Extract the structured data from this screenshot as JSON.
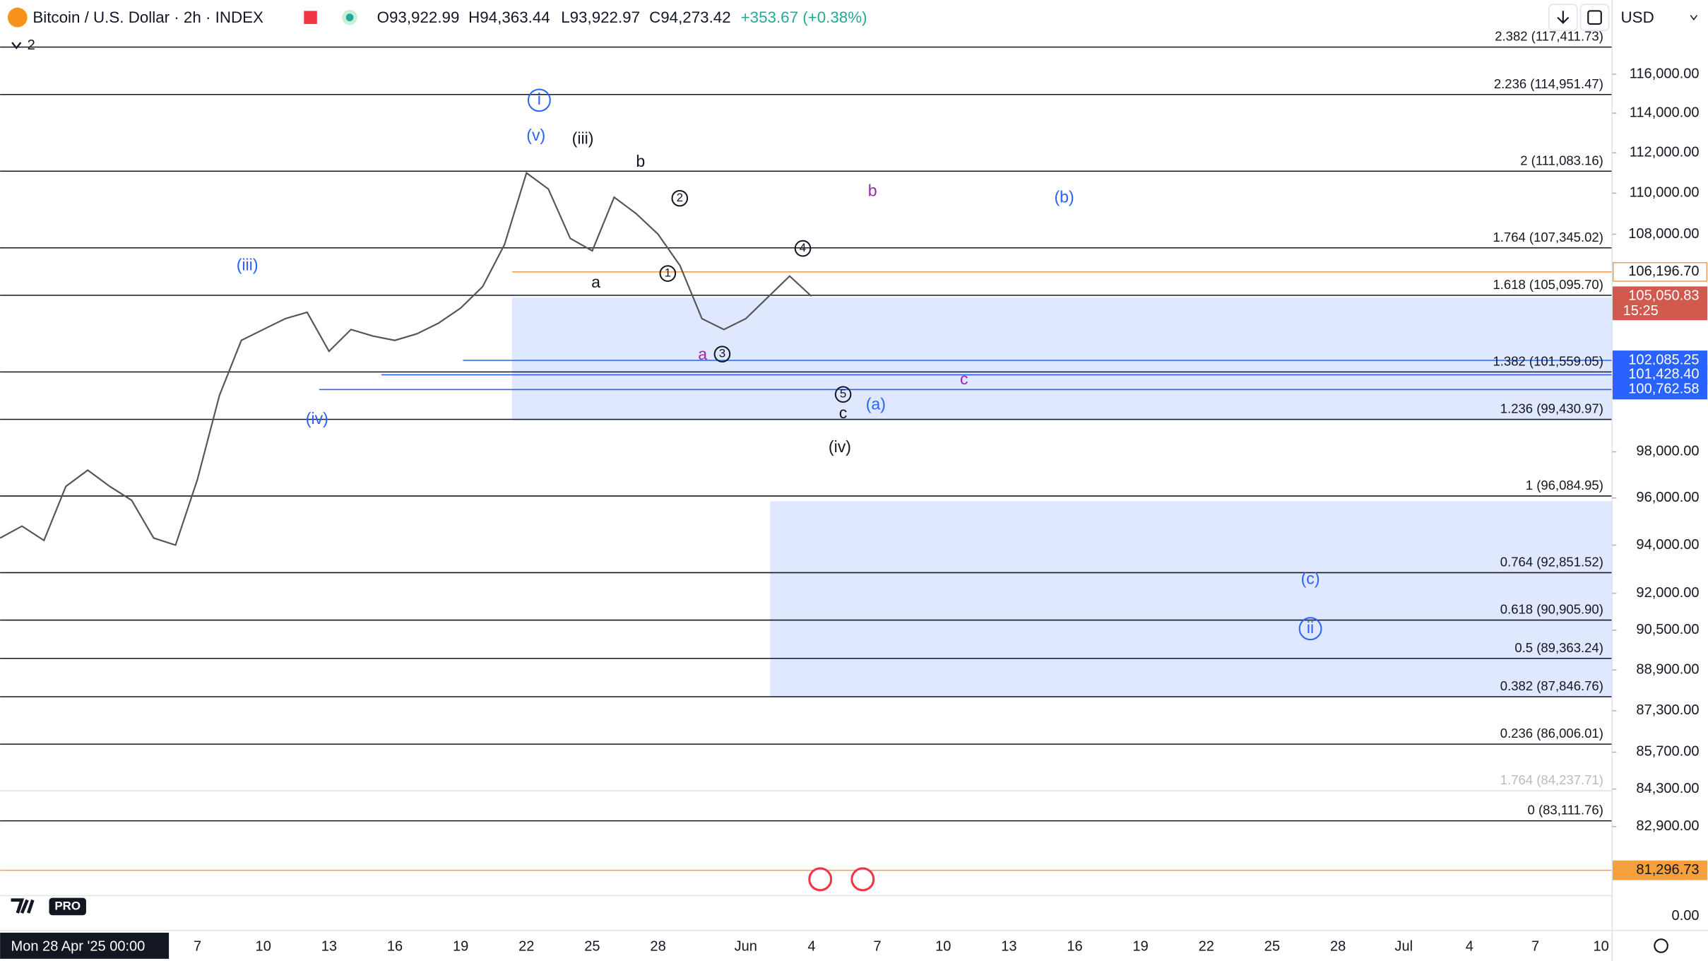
{
  "header": {
    "symbol": "Bitcoin / U.S. Dollar · 2h · INDEX",
    "open": "O93,922.99",
    "high": "H94,363.44",
    "low": "L93,922.97",
    "close": "C94,273.42",
    "change": "+353.67 (+0.38%)",
    "indicator_count": "2",
    "currency": "USD",
    "logo": "PRO"
  },
  "chart_data": {
    "type": "line",
    "log_scale": true,
    "x": [
      "2025-04-28T00:00",
      "2025-04-29T00:00",
      "2025-04-30T00:00",
      "2025-05-01T00:00",
      "2025-05-02T00:00",
      "2025-05-03T00:00",
      "2025-05-04T00:00",
      "2025-05-05T00:00",
      "2025-05-06T00:00",
      "2025-05-07T00:00",
      "2025-05-08T00:00",
      "2025-05-09T00:00",
      "2025-05-10T00:00",
      "2025-05-11T00:00",
      "2025-05-12T00:00",
      "2025-05-13T00:00",
      "2025-05-14T00:00",
      "2025-05-15T00:00",
      "2025-05-16T00:00",
      "2025-05-17T00:00",
      "2025-05-18T00:00",
      "2025-05-19T00:00",
      "2025-05-20T00:00",
      "2025-05-21T00:00",
      "2025-05-22T00:00",
      "2025-05-23T00:00",
      "2025-05-24T00:00",
      "2025-05-25T00:00",
      "2025-05-26T00:00",
      "2025-05-27T00:00",
      "2025-05-28T00:00",
      "2025-05-29T00:00",
      "2025-05-30T00:00",
      "2025-05-31T00:00",
      "2025-06-01T00:00",
      "2025-06-02T00:00",
      "2025-06-03T00:00",
      "2025-06-04T00:00"
    ],
    "series": [
      {
        "name": "Bitcoin",
        "color": "#555555",
        "values": [
          94300,
          94800,
          94200,
          96500,
          97200,
          96500,
          95900,
          94300,
          94000,
          96800,
          100500,
          103000,
          103500,
          104000,
          104300,
          102500,
          103500,
          103200,
          103000,
          103300,
          103800,
          104500,
          105500,
          107500,
          111000,
          110200,
          107800,
          107200,
          109800,
          109000,
          108000,
          106500,
          104000,
          103500,
          104000,
          105000,
          106000,
          105050
        ]
      }
    ],
    "xlim": [
      "2025-04-28T00:00",
      "2025-07-10T12:00"
    ],
    "xticks": [
      {
        "value": "2025-04-28T00:00",
        "label": "Mon 28 Apr '25   00:00"
      },
      {
        "value": "2025-05-07T00:00",
        "label": "7"
      },
      {
        "value": "2025-05-10T00:00",
        "label": "10"
      },
      {
        "value": "2025-05-13T00:00",
        "label": "13"
      },
      {
        "value": "2025-05-16T00:00",
        "label": "16"
      },
      {
        "value": "2025-05-19T00:00",
        "label": "19"
      },
      {
        "value": "2025-05-22T00:00",
        "label": "22"
      },
      {
        "value": "2025-05-25T00:00",
        "label": "25"
      },
      {
        "value": "2025-05-28T00:00",
        "label": "28"
      },
      {
        "value": "2025-06-01T00:00",
        "label": "Jun"
      },
      {
        "value": "2025-06-04T00:00",
        "label": "4"
      },
      {
        "value": "2025-06-07T00:00",
        "label": "7"
      },
      {
        "value": "2025-06-10T00:00",
        "label": "10"
      },
      {
        "value": "2025-06-13T00:00",
        "label": "13"
      },
      {
        "value": "2025-06-16T00:00",
        "label": "16"
      },
      {
        "value": "2025-06-19T00:00",
        "label": "19"
      },
      {
        "value": "2025-06-22T00:00",
        "label": "22"
      },
      {
        "value": "2025-06-25T00:00",
        "label": "25"
      },
      {
        "value": "2025-06-28T00:00",
        "label": "28"
      },
      {
        "value": "2025-07-01T00:00",
        "label": "Jul"
      },
      {
        "value": "2025-07-04T00:00",
        "label": "4"
      },
      {
        "value": "2025-07-07T00:00",
        "label": "7"
      },
      {
        "value": "2025-07-10T00:00",
        "label": "10"
      }
    ],
    "ylim": [
      80460,
      118170
    ],
    "yticks": [
      {
        "value": 116000,
        "label": "116,000.00"
      },
      {
        "value": 114000,
        "label": "114,000.00"
      },
      {
        "value": 112000,
        "label": "112,000.00"
      },
      {
        "value": 110000,
        "label": "110,000.00"
      },
      {
        "value": 108000,
        "label": "108,000.00"
      },
      {
        "value": 98000,
        "label": "98,000.00"
      },
      {
        "value": 96000,
        "label": "96,000.00"
      },
      {
        "value": 94000,
        "label": "94,000.00"
      },
      {
        "value": 92000,
        "label": "92,000.00"
      },
      {
        "value": 90500,
        "label": "90,500.00"
      },
      {
        "value": 88900,
        "label": "88,900.00"
      },
      {
        "value": 87300,
        "label": "87,300.00"
      },
      {
        "value": 85700,
        "label": "85,700.00"
      },
      {
        "value": 84300,
        "label": "84,300.00"
      },
      {
        "value": 82900,
        "label": "82,900.00"
      }
    ],
    "fib_levels": [
      {
        "label": "2.382 (117,411.73)",
        "value": 117411.73,
        "color": "#131722"
      },
      {
        "label": "2.236 (114,951.47)",
        "value": 114951.47,
        "color": "#131722"
      },
      {
        "label": "2 (111,083.16)",
        "value": 111083.16,
        "color": "#131722"
      },
      {
        "label": "1.764 (107,345.02)",
        "value": 107345.02,
        "color": "#131722"
      },
      {
        "label": "1.618 (105,095.70)",
        "value": 105095.7,
        "color": "#131722"
      },
      {
        "label": "1.382 (101,559.05)",
        "value": 101559.05,
        "color": "#131722"
      },
      {
        "label": "1.236 (99,430.97)",
        "value": 99430.97,
        "color": "#131722"
      },
      {
        "label": "1 (96,084.95)",
        "value": 96084.95,
        "color": "#131722"
      },
      {
        "label": "0.764 (92,851.52)",
        "value": 92851.52,
        "color": "#131722"
      },
      {
        "label": "0.618 (90,905.90)",
        "value": 90905.9,
        "color": "#131722"
      },
      {
        "label": "0.5 (89,363.24)",
        "value": 89363.24,
        "color": "#131722"
      },
      {
        "label": "0.382 (87,846.76)",
        "value": 87846.76,
        "color": "#131722"
      },
      {
        "label": "0.236 (86,006.01)",
        "value": 86006.01,
        "color": "#131722"
      },
      {
        "label": "1.764 (84,237.71)",
        "value": 84237.71,
        "color": "#bbbbbb"
      },
      {
        "label": "0 (83,111.76)",
        "value": 83111.76,
        "color": "#131722"
      }
    ],
    "price_labels": [
      {
        "label": "106,196.70",
        "value": 106196.7,
        "bg": "#ffffff",
        "fg": "#131722",
        "border": "#f0a050"
      },
      {
        "label": "105,050.83",
        "value": 105050.83,
        "bg": "#d05a4e",
        "fg": "#ffffff",
        "border": "#d05a4e",
        "sub": "15:25"
      },
      {
        "label": "102,085.25",
        "value": 102085.25,
        "bg": "#2962ff",
        "fg": "#ffffff",
        "border": "#2962ff"
      },
      {
        "label": "101,428.40",
        "value": 101428.4,
        "bg": "#2962ff",
        "fg": "#ffffff",
        "border": "#2962ff"
      },
      {
        "label": "100,762.58",
        "value": 100762.58,
        "bg": "#2962ff",
        "fg": "#ffffff",
        "border": "#2962ff"
      },
      {
        "label": "81,296.73",
        "value": 81296.73,
        "bg": "#f5a03c",
        "fg": "#131722",
        "border": "#f5a03c"
      }
    ],
    "indicator_tick": "0.00",
    "annotations": [
      "i",
      "(v)",
      "(iii)",
      "b",
      "2",
      "b",
      "(b)",
      "4",
      "(iii)",
      "a",
      "1",
      "a",
      "3",
      "c",
      "5",
      "c",
      "(a)",
      "(iv)",
      "(iv)",
      "(c)",
      "ii"
    ]
  }
}
